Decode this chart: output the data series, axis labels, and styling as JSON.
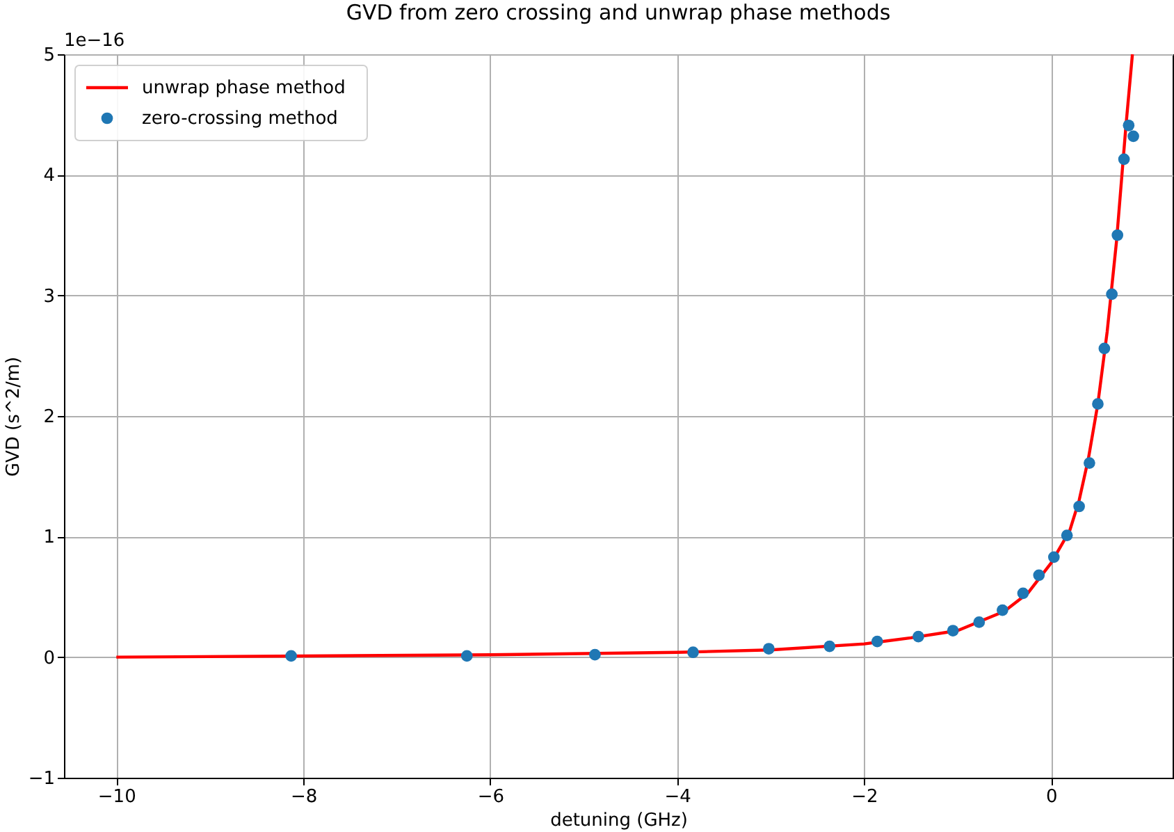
{
  "chart_data": {
    "type": "scatter",
    "title": "GVD from zero crossing and unwrap phase methods",
    "xlabel": "detuning (GHz)",
    "ylabel": "GVD (s^2/m)",
    "annotations": [
      "1e−16"
    ],
    "series": [
      {
        "name": "unwrap phase method",
        "type": "line",
        "color": "#ff0000",
        "marker": "none",
        "line_style": "solid",
        "x": [
          -10,
          -8,
          -6,
          -4,
          -3,
          -2,
          -1.5,
          -1,
          -0.5,
          -0.25,
          0,
          0.2,
          0.3,
          0.4,
          0.5,
          0.6,
          0.7,
          0.8,
          0.87
        ],
        "values": [
          0,
          0.01,
          0.02,
          0.04,
          0.06,
          0.11,
          0.16,
          0.22,
          0.38,
          0.53,
          0.78,
          1.05,
          1.3,
          1.65,
          2.1,
          2.7,
          3.45,
          4.4,
          5.0
        ]
      },
      {
        "name": "zero-crossing method",
        "type": "scatter",
        "color": "#1f77b4",
        "marker": "circle",
        "x": [
          -8.13,
          -6.25,
          -4.88,
          -3.83,
          -3.02,
          -2.37,
          -1.86,
          -1.42,
          -1.05,
          -0.77,
          -0.52,
          -0.3,
          -0.13,
          0.03,
          0.17,
          0.3,
          0.41,
          0.5,
          0.57,
          0.65,
          0.71,
          0.78,
          0.83,
          0.88
        ],
        "values": [
          0.01,
          0.01,
          0.02,
          0.04,
          0.07,
          0.09,
          0.13,
          0.17,
          0.22,
          0.29,
          0.39,
          0.53,
          0.68,
          0.83,
          1.01,
          1.25,
          1.61,
          2.1,
          2.56,
          3.01,
          3.5,
          4.13,
          4.41,
          4.32
        ]
      }
    ],
    "xlim": [
      -10.56,
      1.3
    ],
    "xticks": [
      -10,
      -8,
      -6,
      -4,
      -2,
      0
    ],
    "ylim": [
      -1,
      5
    ],
    "yticks": [
      -1,
      0,
      1,
      2,
      3,
      4,
      5
    ],
    "grid": true,
    "legend": "top left"
  }
}
